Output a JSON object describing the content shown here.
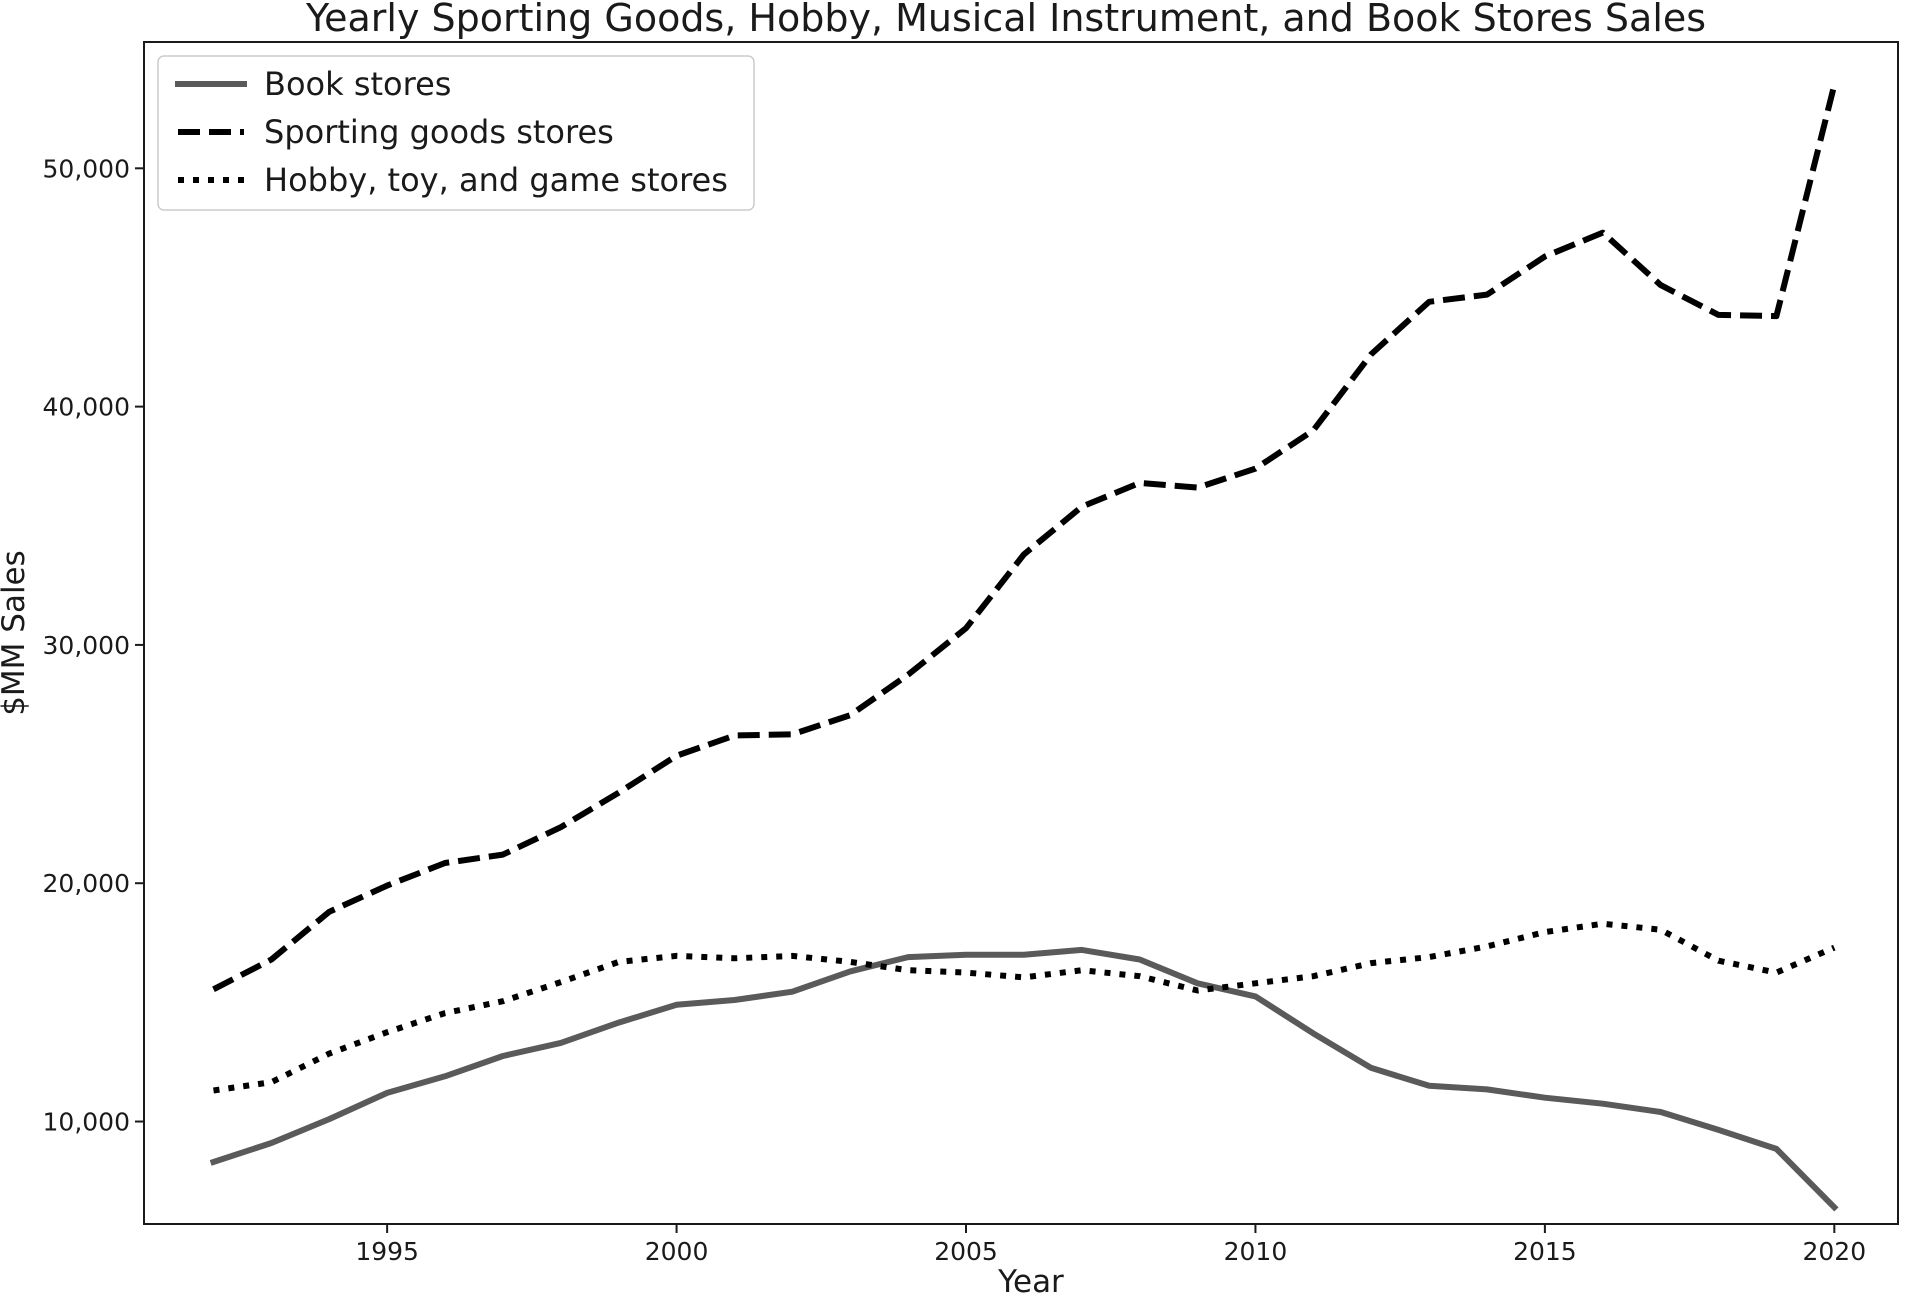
{
  "chart_data": {
    "type": "line",
    "title": "Yearly Sporting Goods, Hobby, Musical Instrument, and Book Stores Sales",
    "xlabel": "Year",
    "ylabel": "$MM Sales",
    "xlim": [
      1990.8,
      2021.1
    ],
    "ylim": [
      5700,
      55300
    ],
    "x_ticks": [
      1995,
      2000,
      2005,
      2010,
      2015,
      2020
    ],
    "x_tick_labels": [
      "1995",
      "2000",
      "2005",
      "2010",
      "2015",
      "2020"
    ],
    "y_ticks": [
      10000,
      20000,
      30000,
      40000,
      50000
    ],
    "y_tick_labels": [
      "10,000",
      "20,000",
      "30,000",
      "40,000",
      "50,000"
    ],
    "grid": false,
    "legend_position": "top-left",
    "x": [
      1992,
      1993,
      1994,
      1995,
      1996,
      1997,
      1998,
      1999,
      2000,
      2001,
      2002,
      2003,
      2004,
      2005,
      2006,
      2007,
      2008,
      2009,
      2010,
      2011,
      2012,
      2013,
      2014,
      2015,
      2016,
      2017,
      2018,
      2019,
      2020
    ],
    "series": [
      {
        "name": "Book stores",
        "color": "#5a5a5a",
        "style": "solid",
        "values": [
          8300,
          9100,
          10100,
          11200,
          11900,
          12750,
          13300,
          14150,
          14900,
          15100,
          15450,
          16300,
          16900,
          17000,
          17000,
          17200,
          16800,
          15800,
          15250,
          13700,
          12250,
          11500,
          11350,
          11000,
          10750,
          10400,
          9650,
          8850,
          6400
        ]
      },
      {
        "name": "Sporting goods stores",
        "color": "#000000",
        "style": "dashed",
        "values": [
          15550,
          16800,
          18800,
          19900,
          20850,
          21200,
          22350,
          23800,
          25350,
          26200,
          26250,
          27050,
          28750,
          30700,
          33800,
          35800,
          36800,
          36600,
          37400,
          39000,
          42200,
          44400,
          44700,
          46300,
          47300,
          45100,
          43850,
          43800,
          53500
        ]
      },
      {
        "name": "Hobby, toy, and game stores",
        "color": "#000000",
        "style": "dotted",
        "values": [
          11300,
          11650,
          12850,
          13750,
          14550,
          15050,
          15850,
          16700,
          16950,
          16850,
          16950,
          16700,
          16350,
          16250,
          16050,
          16350,
          16100,
          15500,
          15800,
          16100,
          16650,
          16900,
          17350,
          17950,
          18300,
          18050,
          16750,
          16250,
          17300
        ]
      }
    ]
  }
}
